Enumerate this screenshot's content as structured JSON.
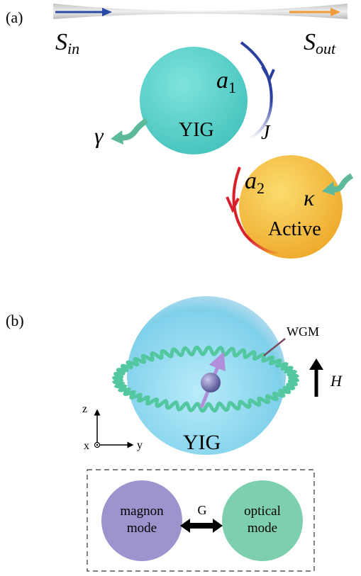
{
  "panel_a": {
    "label": "(a)",
    "input": {
      "symbol": "S",
      "subscript": "in"
    },
    "output": {
      "symbol": "S",
      "subscript": "out"
    },
    "mode1": {
      "symbol": "a",
      "subscript": "1"
    },
    "coupling": "J",
    "loss": "γ",
    "sphere1": "YIG",
    "mode2": {
      "symbol": "a",
      "subscript": "2"
    },
    "gain": "κ",
    "sphere2": "Active"
  },
  "panel_b": {
    "label": "(b)",
    "wgm": "WGM",
    "field": "H",
    "axes": {
      "z": "z",
      "x": "x",
      "y": "y"
    },
    "sphere": "YIG",
    "box": {
      "left_line1": "magnon",
      "left_line2": "mode",
      "coupling": "G",
      "right_line1": "optical",
      "right_line2": "mode"
    }
  }
}
